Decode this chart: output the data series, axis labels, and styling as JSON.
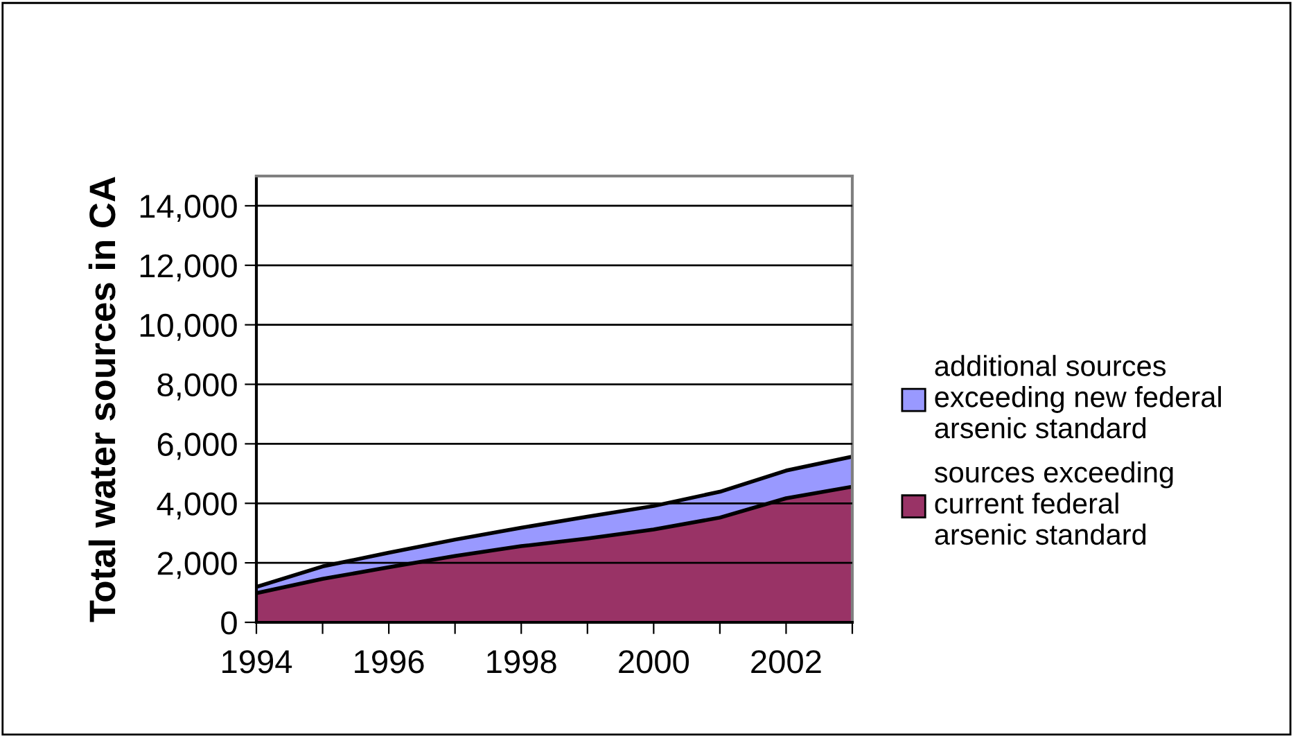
{
  "chart_data": {
    "type": "area",
    "stacked": true,
    "ylabel": "Total water sources in CA",
    "x": [
      1994,
      1995,
      1996,
      1997,
      1998,
      1999,
      2000,
      2001,
      2002,
      2003
    ],
    "series": [
      {
        "name": "sources exceeding current federal arsenic standard",
        "color": "#993366",
        "values": [
          980,
          1460,
          1850,
          2230,
          2560,
          2820,
          3120,
          3520,
          4170,
          4560
        ]
      },
      {
        "name": "additional sources exceeding new federal arsenic standard",
        "color": "#9999ff",
        "values": [
          210,
          420,
          490,
          550,
          620,
          730,
          790,
          870,
          930,
          1010
        ]
      }
    ],
    "xlim": [
      1994,
      2003
    ],
    "xticks": [
      1994,
      {
        "value": 1995,
        "label": null
      },
      1996,
      {
        "value": 1997,
        "label": null
      },
      1998,
      {
        "value": 1999,
        "label": null
      },
      2000,
      {
        "value": 2001,
        "label": null
      },
      2002,
      {
        "value": 2003,
        "label": null
      }
    ],
    "ylim": [
      0,
      15000
    ],
    "yticks": [
      {
        "value": 0,
        "label": "0"
      },
      {
        "value": 2000,
        "label": "2,000"
      },
      {
        "value": 4000,
        "label": "4,000"
      },
      {
        "value": 6000,
        "label": "6,000"
      },
      {
        "value": 8000,
        "label": "8,000"
      },
      {
        "value": 10000,
        "label": "10,000"
      },
      {
        "value": 12000,
        "label": "12,000"
      },
      {
        "value": 14000,
        "label": "14,000"
      }
    ],
    "grid": "y",
    "legend": "right"
  }
}
